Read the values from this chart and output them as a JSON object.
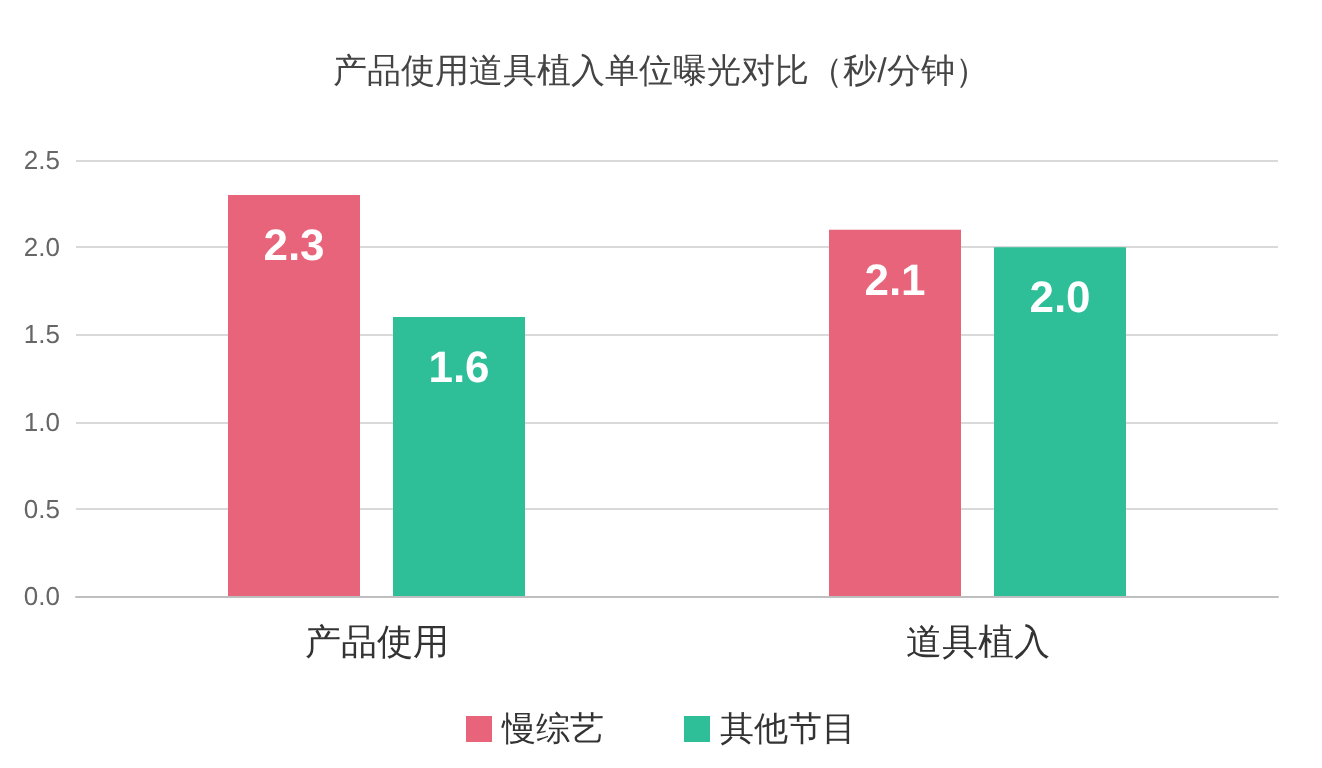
{
  "chart_data": {
    "type": "bar",
    "title": "产品使用道具植入单位曝光对比（秒/分钟）",
    "categories": [
      "产品使用",
      "道具植入"
    ],
    "series": [
      {
        "name": "慢综艺",
        "color": "#e8647a",
        "values": [
          2.3,
          2.1
        ],
        "value_labels": [
          "2.3",
          "2.1"
        ]
      },
      {
        "name": "其他节目",
        "color": "#2ebf98",
        "values": [
          1.6,
          2.0
        ],
        "value_labels": [
          "1.6",
          "2.0"
        ]
      }
    ],
    "ylim": [
      0,
      2.5
    ],
    "yticks": [
      {
        "value": 0,
        "label": "0.0"
      },
      0.5,
      {
        "value": 1,
        "label": "1.0"
      },
      1.5,
      {
        "value": 2,
        "label": "2.0"
      },
      2.5
    ],
    "grid": "y",
    "legend": "bottom"
  }
}
